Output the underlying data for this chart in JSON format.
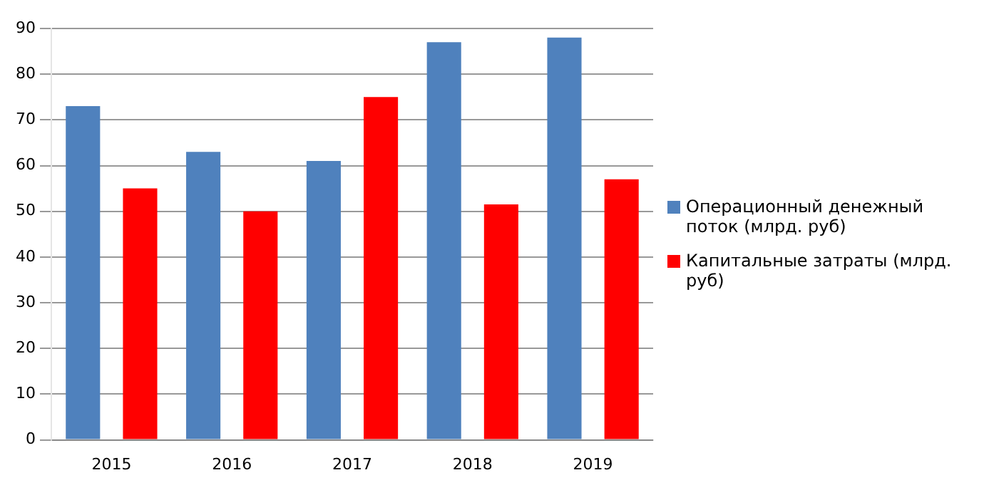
{
  "chart_data": {
    "type": "bar",
    "categories": [
      "2015",
      "2016",
      "2017",
      "2018",
      "2019"
    ],
    "series": [
      {
        "name": "Операционный денежный поток (млрд. руб)",
        "color": "#4f81bd",
        "values": [
          73,
          63,
          61,
          87,
          88
        ]
      },
      {
        "name": "Капитальные затраты (млрд. руб)",
        "color": "#ff0000",
        "values": [
          55,
          50,
          75,
          51.5,
          57
        ]
      }
    ],
    "ylim": [
      0,
      90
    ],
    "yticks": [
      0,
      10,
      20,
      30,
      40,
      50,
      60,
      70,
      80,
      90
    ],
    "grid": "y",
    "legend": "right"
  }
}
